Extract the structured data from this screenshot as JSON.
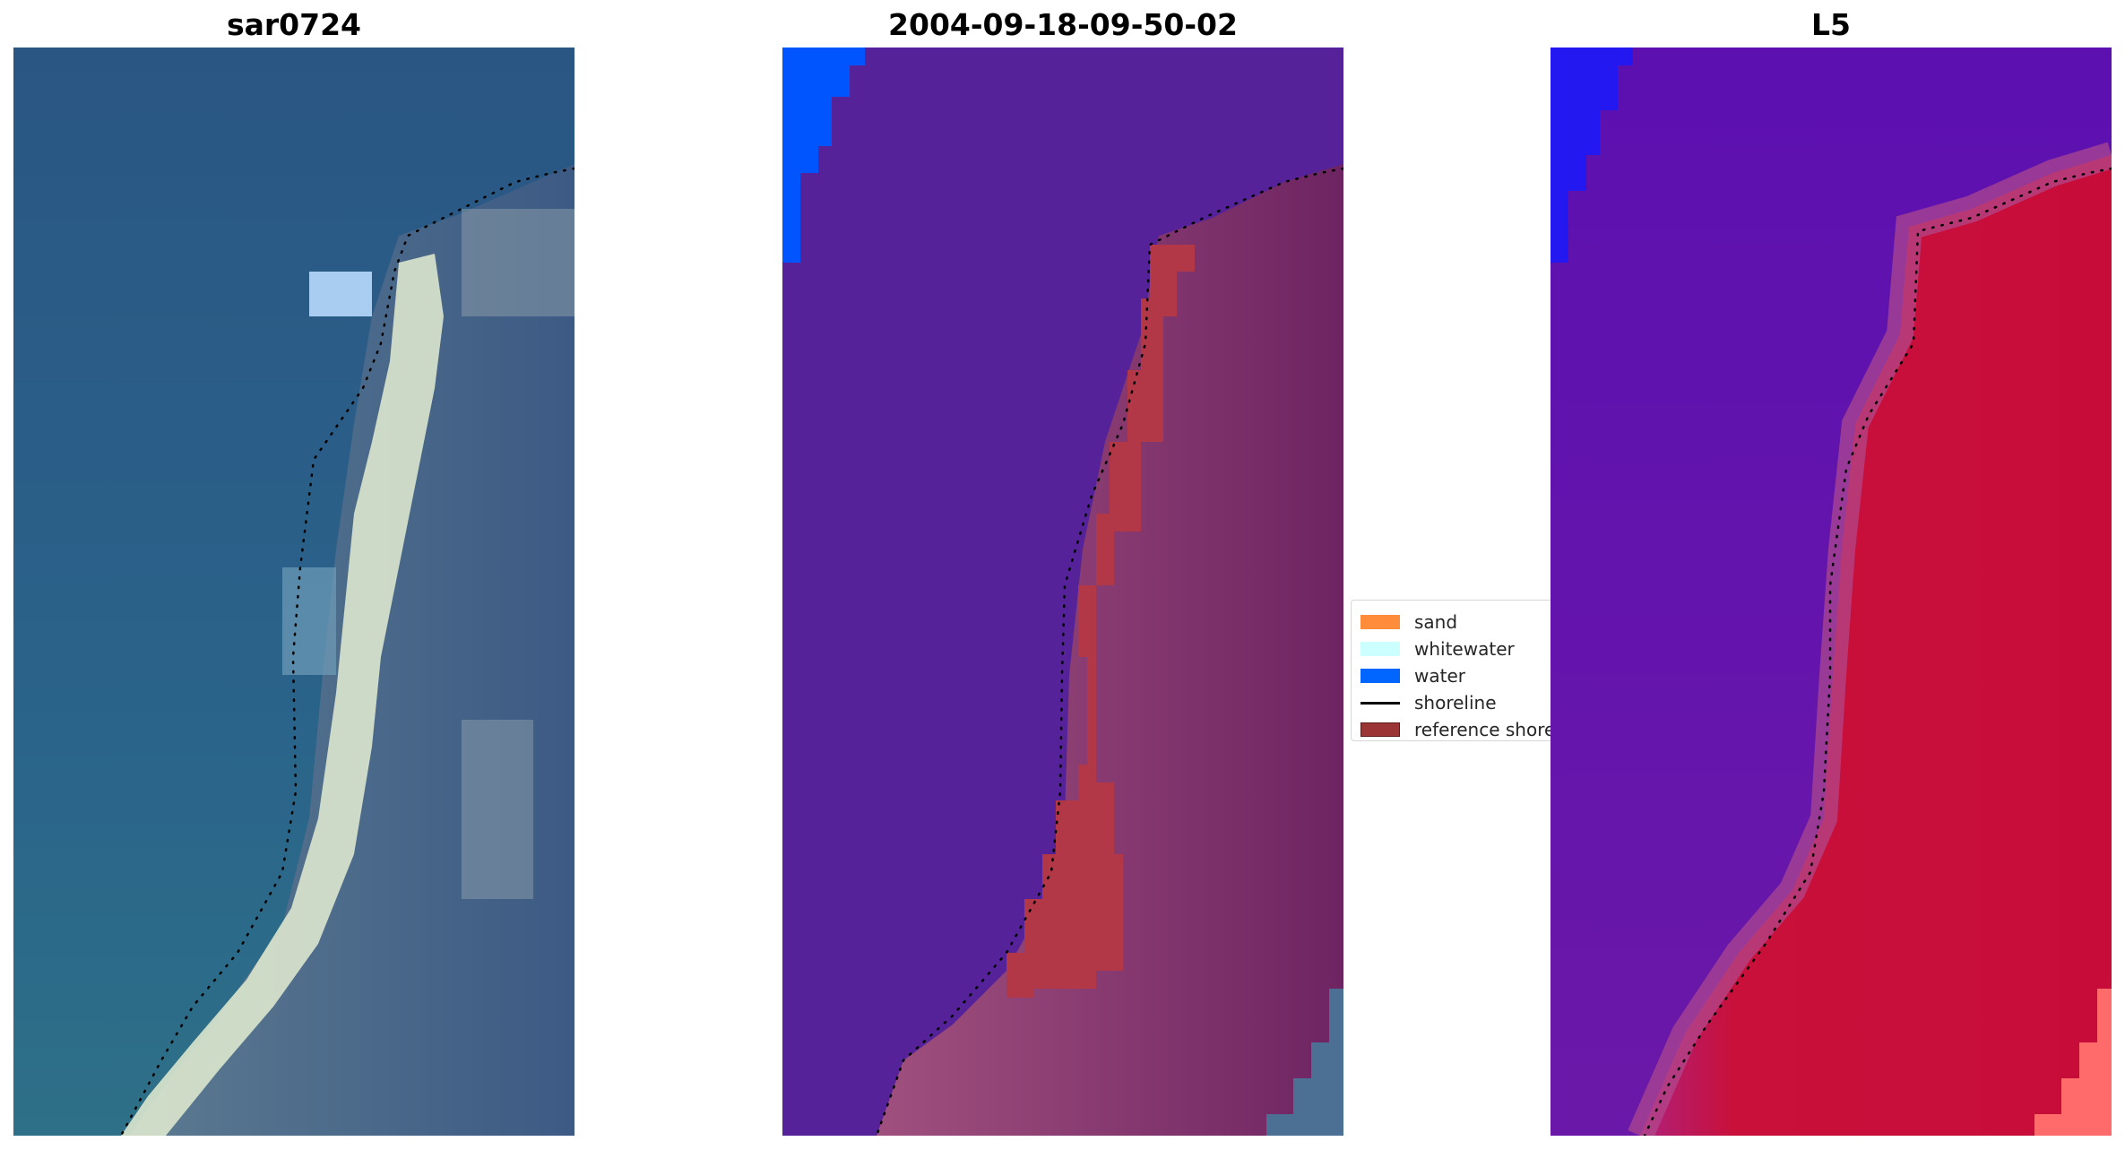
{
  "panels": [
    {
      "title": "sar0724"
    },
    {
      "title": "2004-09-18-09-50-02"
    },
    {
      "title": "L5"
    }
  ],
  "legend": {
    "items": [
      {
        "label": "sand",
        "color": "#ff8c3a"
      },
      {
        "label": "whitewater",
        "color": "#ccffff"
      },
      {
        "label": "water",
        "color": "#0066ff"
      },
      {
        "label": "shoreline",
        "color": "#000000"
      },
      {
        "label": "reference shoreline",
        "color": "#9b3434"
      }
    ]
  },
  "colors": {
    "rgb_water": "#2a5a88",
    "rgb_sand": "#e8f2d8",
    "classified_sea": "#55229a",
    "classified_land": "#7a2a6a",
    "reference_band": "#b23848",
    "water_class": "#0055ff",
    "mndwi_water": "#6a10b8",
    "mndwi_land": "#c8103a"
  }
}
